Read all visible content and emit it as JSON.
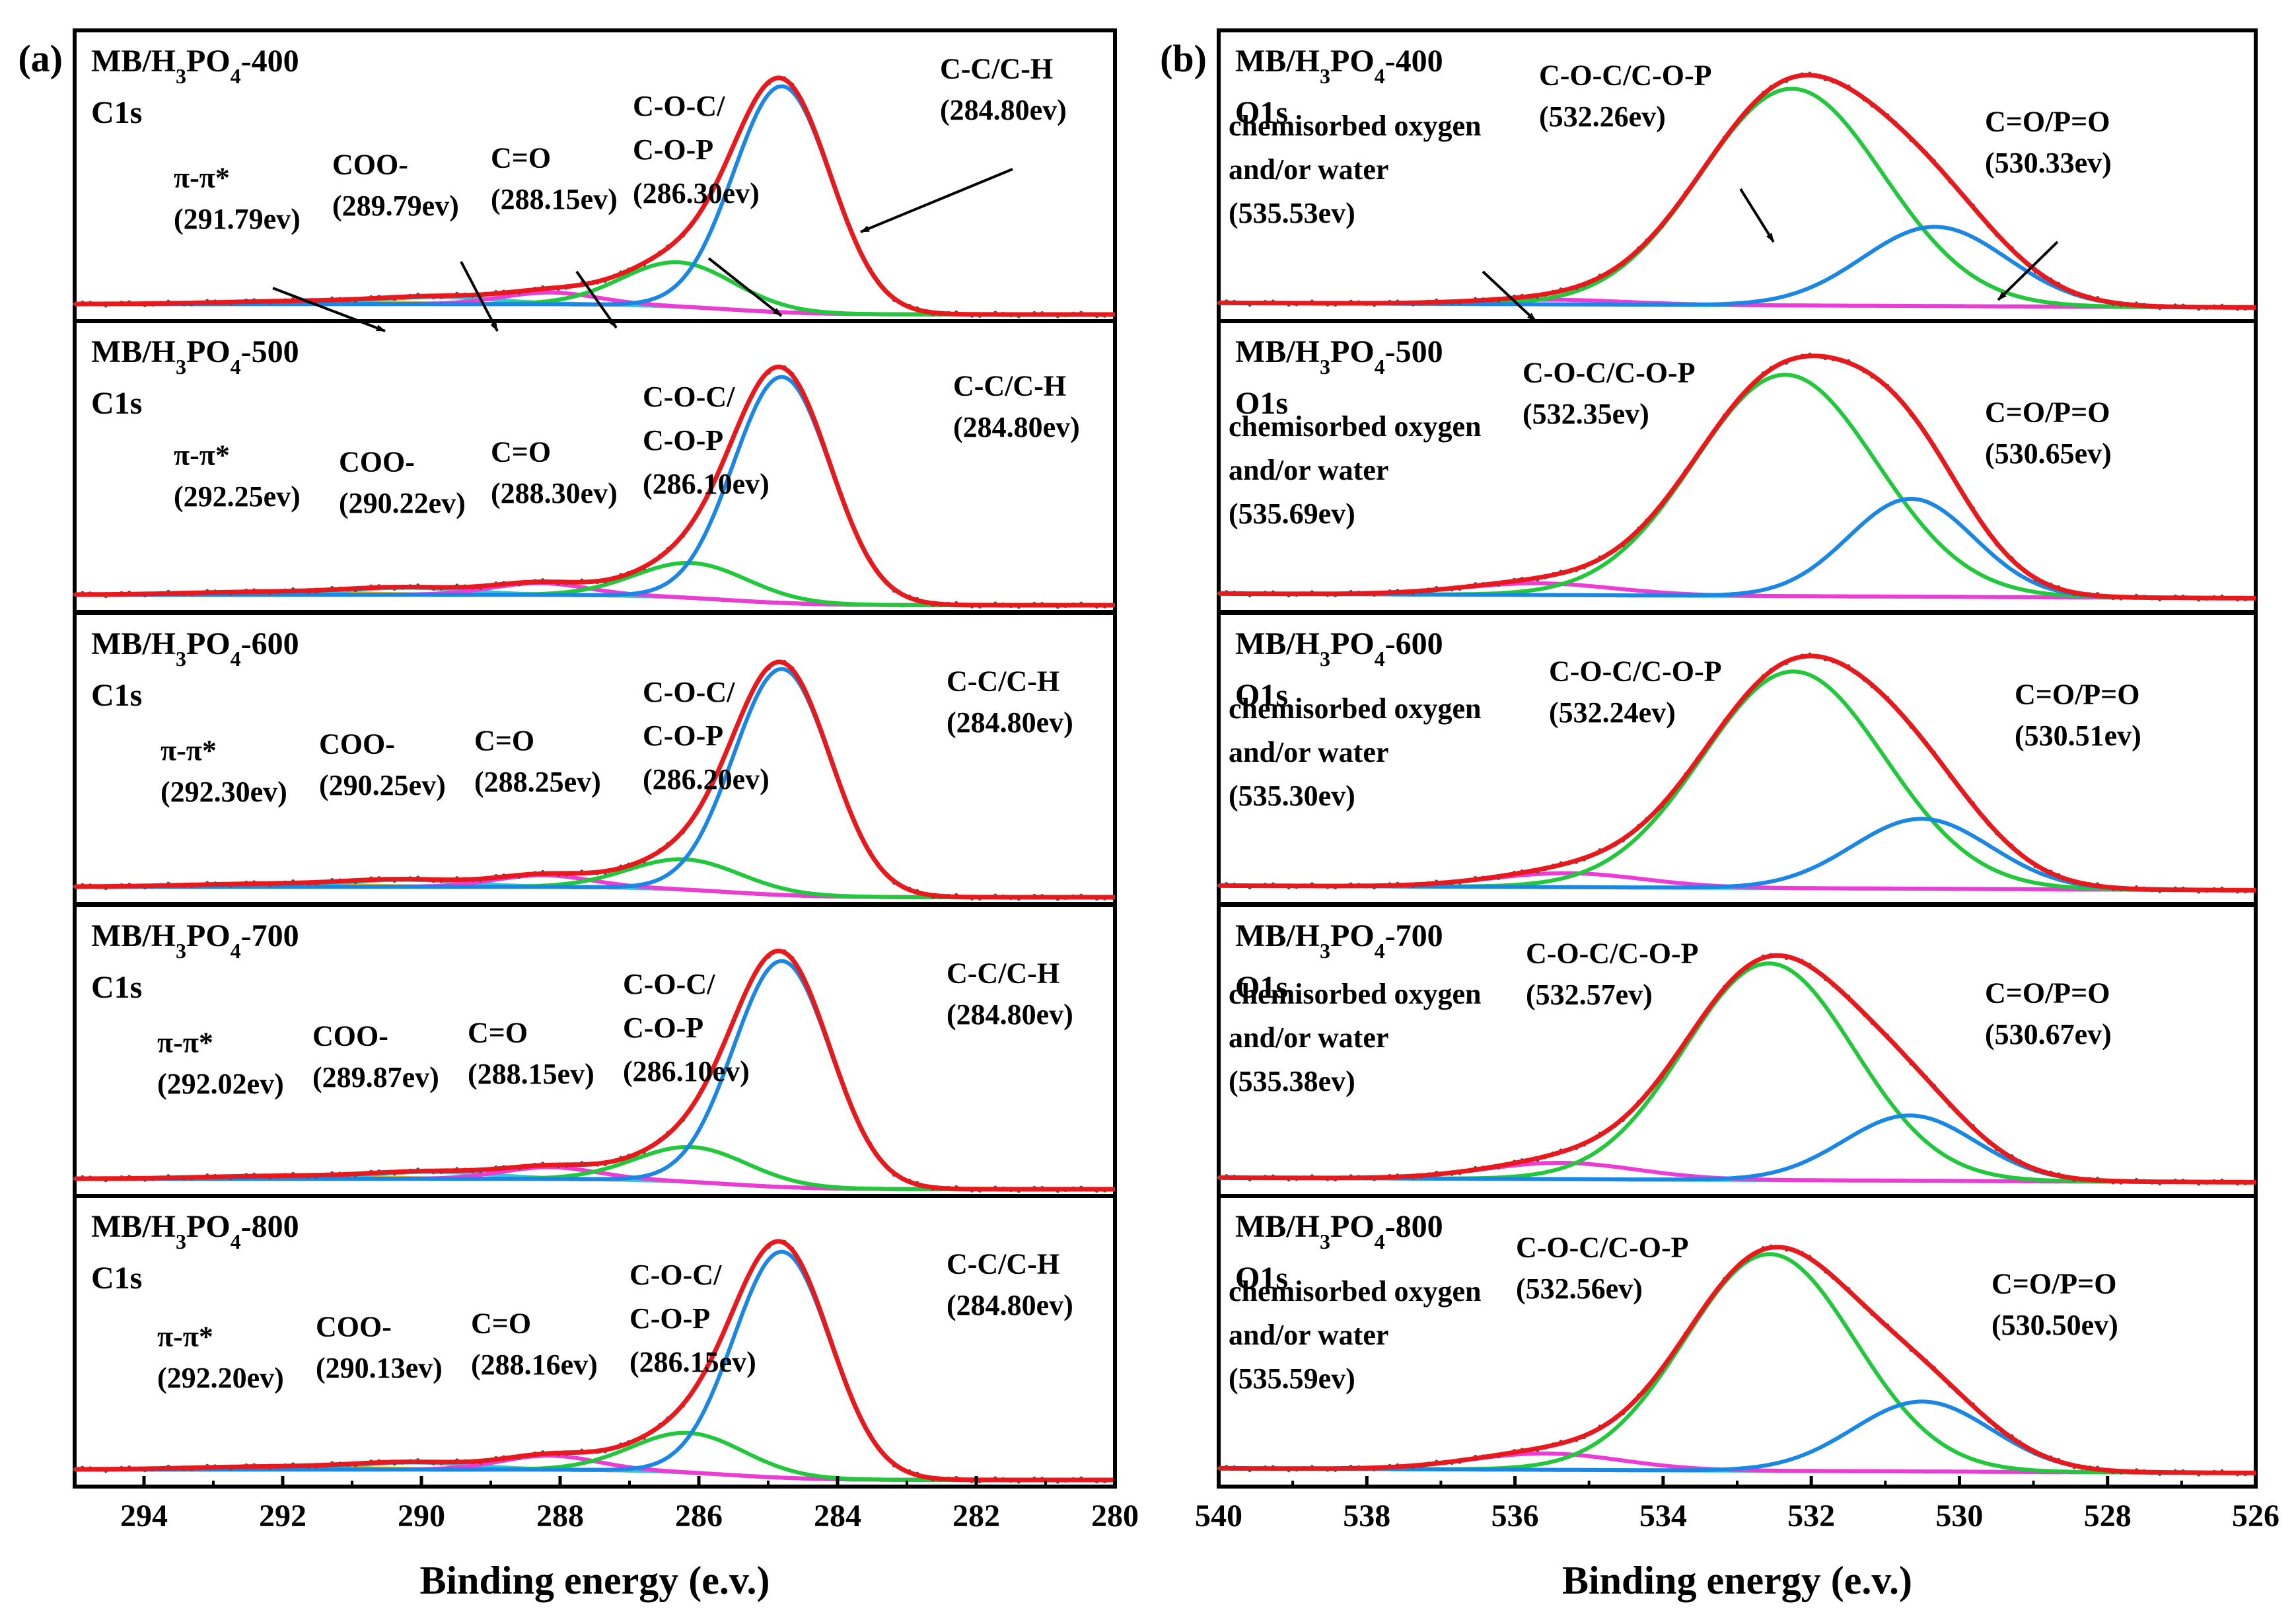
{
  "figure": {
    "x_title": "Binding energy (e.v.)",
    "colors": {
      "envelope": "#e8191c",
      "raw_points": "#555555",
      "baseline": "#e8191c",
      "cc": "#1a87e4",
      "coc": "#22c83b",
      "co": "#ee3bd6",
      "coo": "#32c8e0",
      "pipi": "#f1b800",
      "o_cop": "#22c83b",
      "o_co": "#1a87e4",
      "o_chem": "#ee3bd6",
      "o_base": "#2ad3da"
    }
  },
  "chart_data": [
    {
      "panel": "(a)",
      "type": "line",
      "spectrum": "C1s",
      "xlabel": "Binding energy (e.v.)",
      "xlim": [
        295,
        280
      ],
      "xticks": [
        294,
        292,
        290,
        288,
        286,
        284,
        282,
        280
      ],
      "samples": [
        {
          "sample": "MB/H3PO4-400",
          "name_base": "MB/H",
          "name_sub1": "3",
          "name_mid": "PO",
          "name_sub2": "4",
          "name_tail": "-400",
          "spectrum": "C1s",
          "peaks": [
            {
              "label": "π-π*",
              "be": "(291.79ev)",
              "center": 291.79,
              "height": 0.012,
              "fwhm": 2.6,
              "color": "pipi"
            },
            {
              "label": "COO-",
              "be": "(289.79ev)",
              "center": 289.79,
              "height": 0.03,
              "fwhm": 2.0,
              "color": "coo"
            },
            {
              "label": "C=O",
              "be": "(288.15ev)",
              "center": 288.15,
              "height": 0.05,
              "fwhm": 1.6,
              "color": "co"
            },
            {
              "label": "C-O-C/ C-O-P",
              "label_line1": "C-O-C/",
              "label_line2": "C-O-P",
              "be": "(286.30ev)",
              "center": 286.3,
              "height": 0.19,
              "fwhm": 1.9,
              "color": "coc"
            },
            {
              "label": "C-C/C-H",
              "be": "(284.80ev)",
              "center": 284.8,
              "height": 0.97,
              "fwhm": 1.65,
              "color": "cc"
            }
          ]
        },
        {
          "sample": "MB/H3PO4-500",
          "name_base": "MB/H",
          "name_sub1": "3",
          "name_mid": "PO",
          "name_sub2": "4",
          "name_tail": "-500",
          "spectrum": "C1s",
          "peaks": [
            {
              "label": "π-π*",
              "be": "(292.25ev)",
              "center": 292.25,
              "height": 0.012,
              "fwhm": 2.6,
              "color": "pipi"
            },
            {
              "label": "COO-",
              "be": "(290.22ev)",
              "center": 290.22,
              "height": 0.03,
              "fwhm": 2.0,
              "color": "coo"
            },
            {
              "label": "C=O",
              "be": "(288.30ev)",
              "center": 288.3,
              "height": 0.05,
              "fwhm": 1.6,
              "color": "co"
            },
            {
              "label": "C-O-C/ C-O-P",
              "label_line1": "C-O-C/",
              "label_line2": "C-O-P",
              "be": "(286.10ev)",
              "center": 286.1,
              "height": 0.15,
              "fwhm": 1.9,
              "color": "coc"
            },
            {
              "label": "C-C/C-H",
              "be": "(284.80ev)",
              "center": 284.8,
              "height": 0.97,
              "fwhm": 1.65,
              "color": "cc"
            }
          ]
        },
        {
          "sample": "MB/H3PO4-600",
          "name_base": "MB/H",
          "name_sub1": "3",
          "name_mid": "PO",
          "name_sub2": "4",
          "name_tail": "-600",
          "spectrum": "C1s",
          "peaks": [
            {
              "label": "π-π*",
              "be": "(292.30ev)",
              "center": 292.3,
              "height": 0.012,
              "fwhm": 2.6,
              "color": "pipi"
            },
            {
              "label": "COO-",
              "be": "(290.25ev)",
              "center": 290.25,
              "height": 0.03,
              "fwhm": 2.0,
              "color": "coo"
            },
            {
              "label": "C=O",
              "be": "(288.25ev)",
              "center": 288.25,
              "height": 0.05,
              "fwhm": 1.6,
              "color": "co"
            },
            {
              "label": "C-O-C/ C-O-P",
              "label_line1": "C-O-C/",
              "label_line2": "C-O-P",
              "be": "(286.20ev)",
              "center": 286.2,
              "height": 0.13,
              "fwhm": 1.9,
              "color": "coc"
            },
            {
              "label": "C-C/C-H",
              "be": "(284.80ev)",
              "center": 284.8,
              "height": 0.97,
              "fwhm": 1.65,
              "color": "cc"
            }
          ]
        },
        {
          "sample": "MB/H3PO4-700",
          "name_base": "MB/H",
          "name_sub1": "3",
          "name_mid": "PO",
          "name_sub2": "4",
          "name_tail": "-700",
          "spectrum": "C1s",
          "peaks": [
            {
              "label": "π-π*",
              "be": "(292.02ev)",
              "center": 292.02,
              "height": 0.012,
              "fwhm": 2.6,
              "color": "pipi"
            },
            {
              "label": "COO-",
              "be": "(289.87ev)",
              "center": 289.87,
              "height": 0.03,
              "fwhm": 2.0,
              "color": "coo"
            },
            {
              "label": "C=O",
              "be": "(288.15ev)",
              "center": 288.15,
              "height": 0.05,
              "fwhm": 1.6,
              "color": "co"
            },
            {
              "label": "C-O-C/ C-O-P",
              "label_line1": "C-O-C/",
              "label_line2": "C-O-P",
              "be": "(286.10ev)",
              "center": 286.1,
              "height": 0.15,
              "fwhm": 1.9,
              "color": "coc"
            },
            {
              "label": "C-C/C-H",
              "be": "(284.80ev)",
              "center": 284.8,
              "height": 0.97,
              "fwhm": 1.65,
              "color": "cc"
            }
          ]
        },
        {
          "sample": "MB/H3PO4-800",
          "name_base": "MB/H",
          "name_sub1": "3",
          "name_mid": "PO",
          "name_sub2": "4",
          "name_tail": "-800",
          "spectrum": "C1s",
          "peaks": [
            {
              "label": "π-π*",
              "be": "(292.20ev)",
              "center": 292.2,
              "height": 0.012,
              "fwhm": 2.6,
              "color": "pipi"
            },
            {
              "label": "COO-",
              "be": "(290.13ev)",
              "center": 290.13,
              "height": 0.03,
              "fwhm": 2.0,
              "color": "coo"
            },
            {
              "label": "C=O",
              "be": "(288.16ev)",
              "center": 288.16,
              "height": 0.06,
              "fwhm": 1.6,
              "color": "co"
            },
            {
              "label": "C-O-C/ C-O-P",
              "label_line1": "C-O-C/",
              "label_line2": "C-O-P",
              "be": "(286.15ev)",
              "center": 286.15,
              "height": 0.17,
              "fwhm": 1.9,
              "color": "coc"
            },
            {
              "label": "C-C/C-H",
              "be": "(284.80ev)",
              "center": 284.8,
              "height": 0.97,
              "fwhm": 1.65,
              "color": "cc"
            }
          ]
        }
      ]
    },
    {
      "panel": "(b)",
      "type": "line",
      "spectrum": "O1s",
      "xlabel": "Binding energy (e.v.)",
      "xlim": [
        540,
        526
      ],
      "xticks": [
        540,
        538,
        536,
        534,
        532,
        530,
        528,
        526
      ],
      "samples": [
        {
          "sample": "MB/H3PO4-400",
          "name_base": "MB/H",
          "name_sub1": "3",
          "name_mid": "PO",
          "name_sub2": "4",
          "name_tail": "-400",
          "spectrum": "O1s",
          "peaks": [
            {
              "label": "chemisorbed oxygen and/or water",
              "label_line1": "chemisorbed oxygen",
              "label_line2": "and/or water",
              "be": "(535.53ev)",
              "center": 535.53,
              "height": 0.02,
              "fwhm": 2.4,
              "color": "o_chem"
            },
            {
              "label": "C-O-C/C-O-P",
              "be": "(532.26ev)",
              "center": 532.26,
              "height": 0.93,
              "fwhm": 2.9,
              "color": "o_cop"
            },
            {
              "label": "C=O/P=O",
              "be": "(530.33ev)",
              "center": 530.33,
              "height": 0.34,
              "fwhm": 2.3,
              "color": "o_co"
            }
          ]
        },
        {
          "sample": "MB/H3PO4-500",
          "name_base": "MB/H",
          "name_sub1": "3",
          "name_mid": "PO",
          "name_sub2": "4",
          "name_tail": "-500",
          "spectrum": "O1s",
          "peaks": [
            {
              "label": "chemisorbed oxygen and/or water",
              "label_line1": "chemisorbed oxygen",
              "label_line2": "and/or water",
              "be": "(535.69ev)",
              "center": 535.69,
              "height": 0.05,
              "fwhm": 2.4,
              "color": "o_chem"
            },
            {
              "label": "C-O-C/C-O-P",
              "be": "(532.35ev)",
              "center": 532.35,
              "height": 0.95,
              "fwhm": 2.9,
              "color": "o_cop"
            },
            {
              "label": "C=O/P=O",
              "be": "(530.65ev)",
              "center": 530.65,
              "height": 0.42,
              "fwhm": 2.0,
              "color": "o_co"
            }
          ]
        },
        {
          "sample": "MB/H3PO4-600",
          "name_base": "MB/H",
          "name_sub1": "3",
          "name_mid": "PO",
          "name_sub2": "4",
          "name_tail": "-600",
          "spectrum": "O1s",
          "peaks": [
            {
              "label": "chemisorbed oxygen and/or water",
              "label_line1": "chemisorbed oxygen",
              "label_line2": "and/or water",
              "be": "(535.30ev)",
              "center": 535.3,
              "height": 0.06,
              "fwhm": 2.4,
              "color": "o_chem"
            },
            {
              "label": "C-O-C/C-O-P",
              "be": "(532.24ev)",
              "center": 532.24,
              "height": 0.93,
              "fwhm": 2.9,
              "color": "o_cop"
            },
            {
              "label": "C=O/P=O",
              "be": "(530.51ev)",
              "center": 530.51,
              "height": 0.3,
              "fwhm": 2.2,
              "color": "o_co"
            }
          ]
        },
        {
          "sample": "MB/H3PO4-700",
          "name_base": "MB/H",
          "name_sub1": "3",
          "name_mid": "PO",
          "name_sub2": "4",
          "name_tail": "-700",
          "spectrum": "O1s",
          "peaks": [
            {
              "label": "chemisorbed oxygen and/or water",
              "label_line1": "chemisorbed oxygen",
              "label_line2": "and/or water",
              "be": "(535.38ev)",
              "center": 535.38,
              "height": 0.07,
              "fwhm": 2.4,
              "color": "o_chem"
            },
            {
              "label": "C-O-C/C-O-P",
              "be": "(532.57ev)",
              "center": 532.57,
              "height": 0.93,
              "fwhm": 2.7,
              "color": "o_cop"
            },
            {
              "label": "C=O/P=O",
              "be": "(530.67ev)",
              "center": 530.67,
              "height": 0.28,
              "fwhm": 2.1,
              "color": "o_co"
            }
          ]
        },
        {
          "sample": "MB/H3PO4-800",
          "name_base": "MB/H",
          "name_sub1": "3",
          "name_mid": "PO",
          "name_sub2": "4",
          "name_tail": "-800",
          "spectrum": "O1s",
          "peaks": [
            {
              "label": "chemisorbed oxygen and/or water",
              "label_line1": "chemisorbed oxygen",
              "label_line2": "and/or water",
              "be": "(535.59ev)",
              "center": 535.59,
              "height": 0.07,
              "fwhm": 2.4,
              "color": "o_chem"
            },
            {
              "label": "C-O-C/C-O-P",
              "be": "(532.56ev)",
              "center": 532.56,
              "height": 0.93,
              "fwhm": 2.7,
              "color": "o_cop"
            },
            {
              "label": "C=O/P=O",
              "be": "(530.50ev)",
              "center": 530.5,
              "height": 0.3,
              "fwhm": 2.2,
              "color": "o_co"
            }
          ]
        }
      ]
    }
  ]
}
